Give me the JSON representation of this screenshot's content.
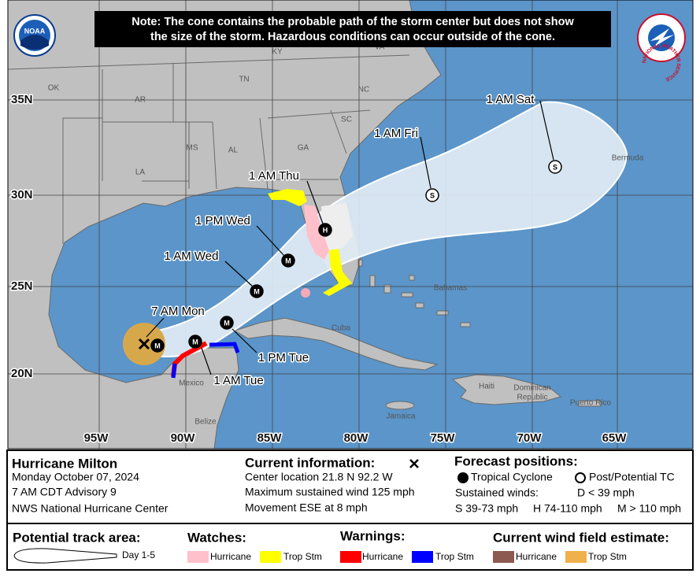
{
  "note": {
    "lines": [
      "Note: The cone contains the probable path of the storm center but does not show",
      "the size of the storm. Hazardous conditions can occur outside of the cone."
    ]
  },
  "logos": {
    "noaa": "NOAA",
    "nws": "NATIONAL WEATHER SERVICE"
  },
  "map": {
    "lat_labels": [
      "35N",
      "30N",
      "25N",
      "20N"
    ],
    "lon_labels": [
      "95W",
      "90W",
      "85W",
      "80W",
      "75W",
      "70W",
      "65W"
    ],
    "places": [
      "OK",
      "AR",
      "TN",
      "KY",
      "VA",
      "NC",
      "SC",
      "MS",
      "AL",
      "GA",
      "LA",
      "Bermuda",
      "Bahamas",
      "Cuba",
      "Haiti",
      "Dominican",
      "Republic",
      "Puerto Rico",
      "Jamaica",
      "Mexico",
      "Belize"
    ],
    "forecast_points": [
      {
        "label": "7 AM Mon",
        "symbol": "M"
      },
      {
        "label": "1 AM Tue",
        "symbol": "M"
      },
      {
        "label": "1 PM Tue",
        "symbol": "M"
      },
      {
        "label": "1 AM Wed",
        "symbol": "M"
      },
      {
        "label": "1 PM Wed",
        "symbol": "M"
      },
      {
        "label": "1 AM Thu",
        "symbol": "H"
      },
      {
        "label": "1 AM Fri",
        "symbol": "S"
      },
      {
        "label": "1 AM Sat",
        "symbol": "S"
      }
    ]
  },
  "info": {
    "storm": {
      "name": "Hurricane Milton",
      "date": "Monday October 07, 2024",
      "advisory": "7 AM CDT Advisory 9",
      "center": "NWS National Hurricane Center"
    },
    "current": {
      "title": "Current information:",
      "lines": [
        "Center location 21.8 N 92.2 W",
        "Maximum sustained wind 125 mph",
        "Movement ESE at 8 mph"
      ]
    },
    "forecast": {
      "title": "Forecast positions:",
      "tropical": "Tropical Cyclone",
      "post": "Post/Potential TC",
      "winds_title": "Sustained winds:",
      "d": "D < 39 mph",
      "s": "S 39-73 mph",
      "h": "H 74-110 mph",
      "m": "M > 110 mph"
    },
    "legend": {
      "track": {
        "title": "Potential track area:",
        "day": "Day 1-5"
      },
      "watches": {
        "title": "Watches:",
        "items": [
          "Hurricane",
          "Trop Stm"
        ]
      },
      "warnings": {
        "title": "Warnings:",
        "items": [
          "Hurricane",
          "Trop Stm"
        ]
      },
      "wind": {
        "title": "Current wind field estimate:",
        "items": [
          "Hurricane",
          "Trop Stm"
        ]
      }
    }
  }
}
